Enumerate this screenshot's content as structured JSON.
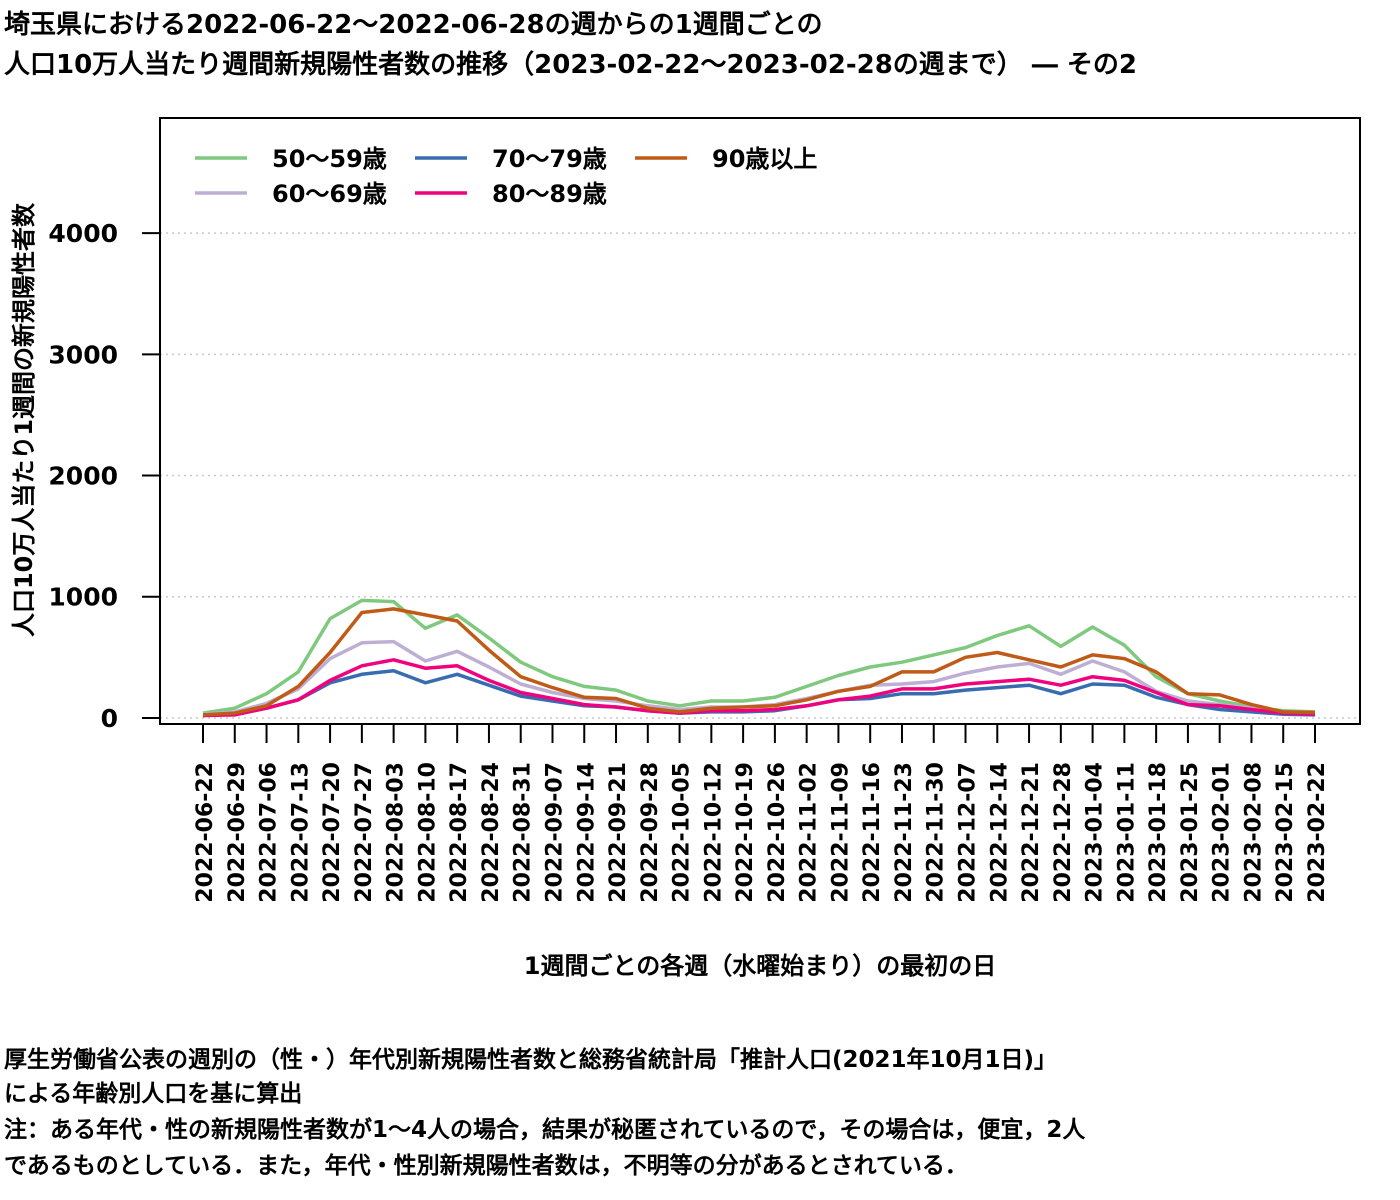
{
  "title": {
    "line1": "埼玉県における2022-06-22～2022-06-28の週からの1週間ごとの",
    "line2": "人口10万人当たり週間新規陽性者数の推移（2023-02-22～2023-02-28の週まで） ― その2"
  },
  "notes": {
    "line1": "厚生労働省公表の週別の（性・）年代別新規陽性者数と総務省統計局「推計人口(2021年10月1日)」",
    "line2": "による年齢別人口を基に算出",
    "line3": "注：ある年代・性の新規陽性者数が1～4人の場合，結果が秘匿されているので，その場合は，便宜，2人",
    "line4": "であるものとしている．また，年代・性別新規陽性者数は，不明等の分があるとされている．"
  },
  "chart_data": {
    "type": "line",
    "xlabel": "1週間ごとの各週（水曜始まり）の最初の日",
    "ylabel": "人口10万人当たり1週間の新規陽性者数",
    "ylim": [
      -50,
      4950
    ],
    "yticks": [
      0,
      1000,
      2000,
      3000,
      4000
    ],
    "grid": "horizontal dotted",
    "legend_position": "top-left",
    "categories": [
      "2022-06-22",
      "2022-06-29",
      "2022-07-06",
      "2022-07-13",
      "2022-07-20",
      "2022-07-27",
      "2022-08-03",
      "2022-08-10",
      "2022-08-17",
      "2022-08-24",
      "2022-08-31",
      "2022-09-07",
      "2022-09-14",
      "2022-09-21",
      "2022-09-28",
      "2022-10-05",
      "2022-10-12",
      "2022-10-19",
      "2022-10-26",
      "2022-11-02",
      "2022-11-09",
      "2022-11-16",
      "2022-11-23",
      "2022-11-30",
      "2022-12-07",
      "2022-12-14",
      "2022-12-21",
      "2022-12-28",
      "2023-01-04",
      "2023-01-11",
      "2023-01-18",
      "2023-01-25",
      "2023-02-01",
      "2023-02-08",
      "2023-02-15",
      "2023-02-22"
    ],
    "series": [
      {
        "name": "50～59歳",
        "color": "#7fc97f",
        "values": [
          40,
          80,
          200,
          380,
          820,
          970,
          960,
          740,
          850,
          660,
          460,
          340,
          260,
          230,
          140,
          100,
          140,
          140,
          170,
          260,
          350,
          420,
          460,
          520,
          580,
          680,
          760,
          590,
          750,
          600,
          340,
          200,
          140,
          90,
          60,
          50
        ]
      },
      {
        "name": "60～69歳",
        "color": "#beaed4",
        "values": [
          30,
          50,
          120,
          240,
          490,
          620,
          630,
          470,
          550,
          420,
          280,
          210,
          160,
          140,
          100,
          70,
          90,
          90,
          110,
          160,
          220,
          270,
          280,
          300,
          370,
          420,
          450,
          360,
          470,
          380,
          220,
          140,
          110,
          80,
          50,
          40
        ]
      },
      {
        "name": "70～79歳",
        "color": "#386cb0",
        "values": [
          20,
          30,
          80,
          150,
          290,
          360,
          390,
          290,
          360,
          270,
          180,
          140,
          100,
          90,
          60,
          40,
          50,
          50,
          60,
          100,
          150,
          160,
          200,
          200,
          230,
          250,
          270,
          200,
          280,
          270,
          170,
          110,
          70,
          50,
          30,
          25
        ]
      },
      {
        "name": "80～89歳",
        "color": "#f0027f",
        "values": [
          20,
          25,
          80,
          150,
          310,
          430,
          480,
          410,
          430,
          310,
          210,
          160,
          110,
          90,
          60,
          40,
          60,
          60,
          70,
          100,
          150,
          180,
          240,
          240,
          280,
          300,
          320,
          270,
          340,
          310,
          210,
          110,
          100,
          70,
          40,
          30
        ]
      },
      {
        "name": "90歳以上",
        "color": "#bf5b17",
        "values": [
          25,
          40,
          100,
          260,
          540,
          870,
          900,
          850,
          800,
          560,
          340,
          250,
          170,
          160,
          80,
          50,
          80,
          90,
          100,
          150,
          220,
          260,
          380,
          380,
          500,
          540,
          480,
          420,
          520,
          490,
          380,
          200,
          190,
          110,
          50,
          45
        ]
      }
    ]
  }
}
